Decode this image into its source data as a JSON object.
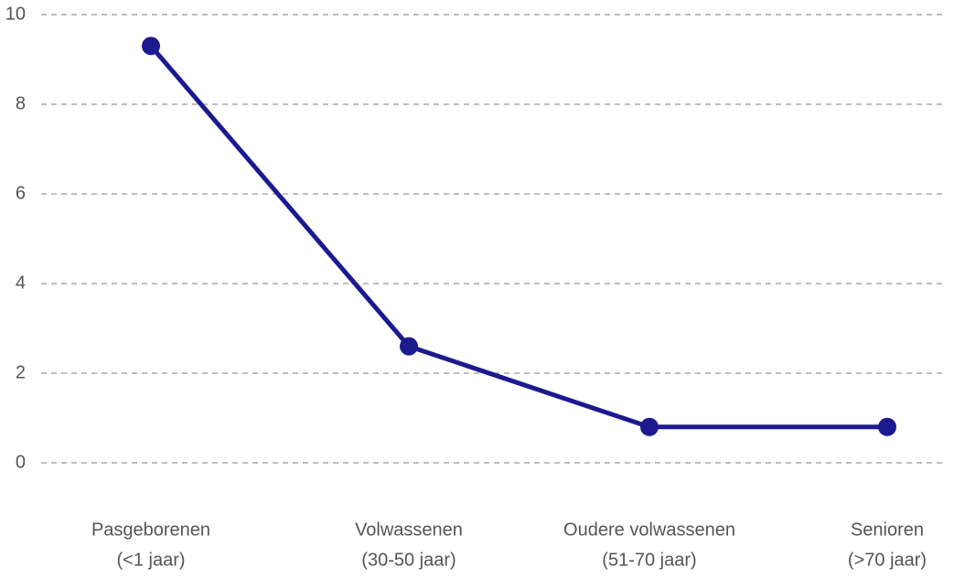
{
  "chart_data": {
    "type": "line",
    "categories": [
      [
        "Pasgeborenen",
        "(<1 jaar)"
      ],
      [
        "Volwassenen",
        "(30-50 jaar)"
      ],
      [
        "Oudere volwassenen",
        "(51-70 jaar)"
      ],
      [
        "Senioren",
        "(>70 jaar)"
      ]
    ],
    "values": [
      9.3,
      2.6,
      0.8,
      0.8
    ],
    "color": "#1c1a8f",
    "ylim": [
      0,
      10
    ],
    "yticks": [
      0,
      2,
      4,
      6,
      8,
      10
    ],
    "grid": true
  }
}
